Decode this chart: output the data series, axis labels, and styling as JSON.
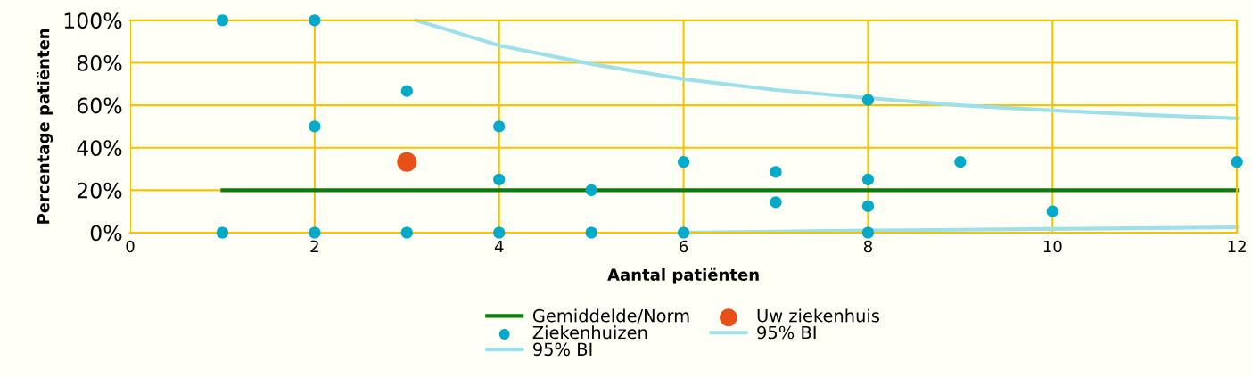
{
  "chart_data": {
    "type": "scatter",
    "xlabel": "Aantal patiënten",
    "ylabel": "Percentage patiënten",
    "xlim": [
      0,
      12
    ],
    "xticks": [
      0,
      2,
      4,
      6,
      8,
      10,
      12
    ],
    "ylim": [
      0,
      100
    ],
    "yticks": [
      {
        "value": 0,
        "label": "0%"
      },
      {
        "value": 20,
        "label": "20%"
      },
      {
        "value": 40,
        "label": "40%"
      },
      {
        "value": 60,
        "label": "60%"
      },
      {
        "value": 80,
        "label": "80%"
      },
      {
        "value": 100,
        "label": "100%"
      }
    ],
    "grid": true,
    "legend": "bottom",
    "series": [
      {
        "name": "Gemiddelde/Norm",
        "type": "line",
        "color": "#0a7d0a",
        "x": [
          1,
          12
        ],
        "values": [
          20,
          20
        ]
      },
      {
        "name": "Ziekenhuizen",
        "color": "#00aac8",
        "marker": "circle",
        "x": [
          1,
          1,
          2,
          2,
          2,
          3,
          3,
          4,
          4,
          4,
          5,
          5,
          6,
          6,
          7,
          7,
          8,
          8,
          8,
          8,
          9,
          10,
          12
        ],
        "values": [
          100,
          0,
          100,
          50,
          0,
          66.7,
          0,
          50,
          25,
          0,
          20,
          0,
          33.3,
          0,
          28.6,
          14.3,
          62.5,
          25,
          12.5,
          0,
          33.3,
          10,
          33.3
        ]
      },
      {
        "name": "95% BI",
        "type": "line",
        "color": "#9ee0ea",
        "x": [
          3.1,
          4,
          5,
          6,
          7,
          8,
          9,
          10,
          11,
          12
        ],
        "values": [
          100,
          88.2,
          79.4,
          72.3,
          67.2,
          63.4,
          60,
          57.6,
          55.5,
          53.8
        ]
      },
      {
        "name": "Uw ziekenhuis",
        "color": "#e8501a",
        "marker": "circle",
        "x": [
          3
        ],
        "values": [
          33.3
        ]
      },
      {
        "name": "95% BI",
        "type": "line",
        "color": "#9ee0ea",
        "x": [
          6,
          8,
          10,
          12
        ],
        "values": [
          0,
          1,
          1.7,
          2.5
        ]
      }
    ]
  }
}
